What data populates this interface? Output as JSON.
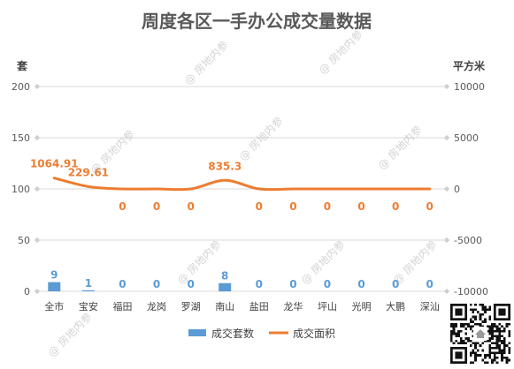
{
  "watermark": "@ 房地内参",
  "chart_data": {
    "type": "bar",
    "title": "周度各区一手办公成交量数据",
    "categories": [
      "全市",
      "宝安",
      "福田",
      "龙岗",
      "罗湖",
      "南山",
      "盐田",
      "龙华",
      "坪山",
      "光明",
      "大鹏",
      "深汕"
    ],
    "series": [
      {
        "name": "成交套数",
        "type": "bar",
        "axis": "left",
        "color": "#5b9bd5",
        "values": [
          9,
          1,
          0,
          0,
          0,
          8,
          0,
          0,
          0,
          0,
          0,
          0
        ]
      },
      {
        "name": "成交面积",
        "type": "line",
        "axis": "right",
        "color": "#ed7d31",
        "values": [
          1064.91,
          229.61,
          0,
          0,
          0,
          835.3,
          0,
          0,
          0,
          0,
          0,
          0
        ]
      }
    ],
    "ylabel": "套",
    "y2label": "平方米",
    "ylim": [
      0,
      200
    ],
    "y2lim": [
      -10000,
      10000
    ],
    "yticks": [
      0,
      50,
      100,
      150,
      200
    ],
    "y2ticks": [
      -10000,
      -5000,
      0,
      5000,
      10000
    ],
    "grid": true,
    "legend": "bottom",
    "data_labels": true,
    "line_smooth": true
  }
}
